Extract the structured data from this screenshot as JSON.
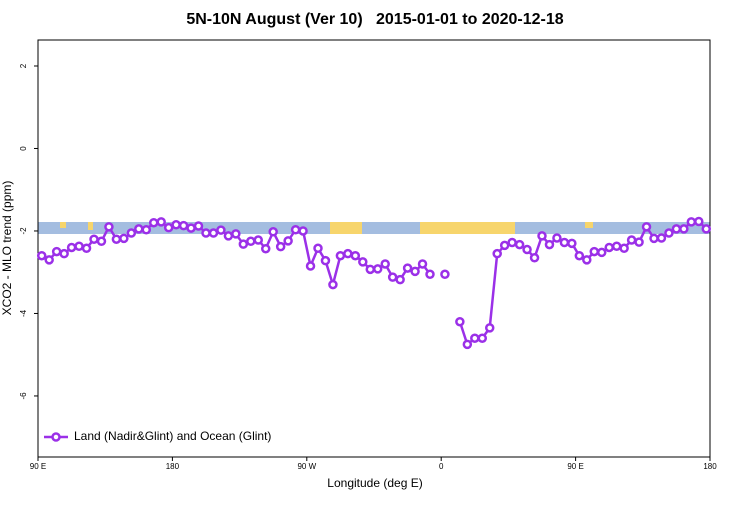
{
  "chart_data": {
    "type": "line",
    "title": "5N-10N August (Ver 10)   2015-01-01 to 2020-12-18",
    "x_label": "Longitude (deg E)",
    "y_label": "XCO2 - MLO trend (ppm)",
    "xlim": [
      90,
      540
    ],
    "xticks": [
      {
        "value": 90,
        "label": "90 E"
      },
      180,
      {
        "value": 270,
        "label": "90 W"
      },
      {
        "value": 360,
        "label": "0"
      },
      {
        "value": 450,
        "label": "90 E"
      },
      {
        "value": 540,
        "label": "180"
      }
    ],
    "ylim": [
      2.63,
      -7.48
    ],
    "yticks": [
      2,
      0,
      -2,
      -4,
      -6
    ],
    "legend": "bottom-left",
    "x": [
      92.5,
      97.5,
      102.5,
      107.5,
      112.5,
      117.5,
      122.5,
      127.5,
      132.5,
      137.5,
      142.5,
      147.5,
      152.5,
      157.5,
      162.5,
      167.5,
      172.5,
      177.5,
      182.5,
      187.5,
      192.5,
      197.5,
      202.5,
      207.5,
      212.5,
      217.5,
      222.5,
      227.5,
      232.5,
      237.5,
      242.5,
      247.5,
      252.5,
      257.5,
      262.5,
      267.5,
      272.5,
      277.5,
      282.5,
      287.5,
      292.5,
      297.5,
      302.5,
      307.5,
      312.5,
      317.5,
      322.5,
      327.5,
      332.5,
      337.5,
      342.5,
      347.5,
      352.5,
      357.5,
      362.5,
      367.5,
      372.5,
      377.5,
      382.5,
      387.5,
      392.5,
      397.5,
      402.5,
      407.5,
      412.5,
      417.5,
      422.5,
      427.5,
      432.5,
      437.5,
      442.5,
      447.5,
      452.5,
      457.5,
      462.5,
      467.5,
      472.5,
      477.5,
      482.5,
      487.5,
      492.5,
      497.5,
      502.5,
      507.5,
      512.5,
      517.5,
      522.5,
      527.5,
      532.5,
      537.5
    ],
    "series": [
      {
        "name": "Land (Nadir&Glint) and Ocean (Glint)",
        "color": "#9b30e8",
        "values": [
          -2.6,
          -2.7,
          -2.5,
          -2.55,
          -2.4,
          -2.37,
          -2.42,
          -2.2,
          -2.25,
          -1.9,
          -2.2,
          -2.18,
          -2.05,
          -1.95,
          -1.97,
          -1.8,
          -1.78,
          -1.92,
          -1.85,
          -1.87,
          -1.93,
          -1.88,
          -2.05,
          -2.05,
          -1.98,
          -2.12,
          -2.07,
          -2.32,
          -2.25,
          -2.22,
          -2.43,
          -2.02,
          -2.38,
          -2.24,
          -1.97,
          -2.0,
          -2.85,
          -2.42,
          -2.72,
          -3.3,
          -2.6,
          -2.55,
          -2.6,
          -2.75,
          -2.93,
          -2.92,
          -2.8,
          -3.12,
          -3.18,
          -2.9,
          -2.98,
          -2.8,
          -3.05,
          null,
          -3.05,
          null,
          -4.2,
          -4.75,
          -4.6,
          -4.6,
          -4.35,
          -2.55,
          -2.35,
          -2.28,
          -2.33,
          -2.45,
          -2.65,
          -2.12,
          -2.33,
          -2.17,
          -2.28,
          -2.3,
          -2.6,
          -2.7,
          -2.5,
          -2.52,
          -2.4,
          -2.37,
          -2.42,
          -2.22,
          -2.27,
          -1.9,
          -2.18,
          -2.17,
          -2.05,
          -1.95,
          -1.95,
          -1.78,
          -1.77,
          -1.95
        ]
      }
    ]
  }
}
